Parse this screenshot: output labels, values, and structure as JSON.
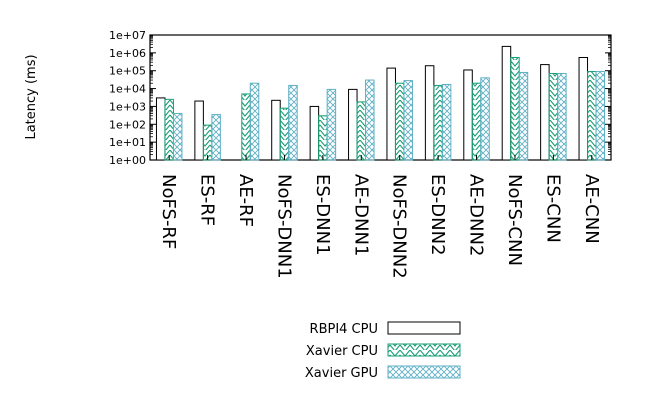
{
  "chart_data": {
    "type": "bar",
    "title": "",
    "ylabel": "Latency (ms)",
    "xlabel": "",
    "yscale": "log",
    "ylim": [
      1,
      10000000
    ],
    "yticks": [
      "1e+00",
      "1e+01",
      "1e+02",
      "1e+03",
      "1e+04",
      "1e+05",
      "1e+06",
      "1e+07"
    ],
    "categories": [
      "NoFS-RF",
      "ES-RF",
      "AE-RF",
      "NoFS-DNN1",
      "ES-DNN1",
      "AE-DNN1",
      "NoFS-DNN2",
      "ES-DNN2",
      "AE-DNN2",
      "NoFS-CNN",
      "ES-CNN",
      "AE-CNN"
    ],
    "series": [
      {
        "name": "RBPI4 CPU",
        "pattern": "blank",
        "color": "#000000",
        "values": [
          3000,
          2000,
          null,
          2200,
          1000,
          9000,
          140000,
          190000,
          110000,
          2300000,
          220000,
          550000
        ]
      },
      {
        "name": "Xavier CPU",
        "pattern": "zigzag",
        "color": "#1a9e76",
        "values": [
          2500,
          90,
          5000,
          800,
          300,
          1800,
          20000,
          15000,
          20000,
          550000,
          70000,
          90000
        ]
      },
      {
        "name": "Xavier GPU",
        "pattern": "crosshatch",
        "color": "#5fb0c4",
        "values": [
          400,
          350,
          20000,
          15000,
          9000,
          30000,
          28000,
          17000,
          40000,
          80000,
          70000,
          90000
        ]
      }
    ],
    "legend_position": "bottom-center",
    "grid": false
  }
}
